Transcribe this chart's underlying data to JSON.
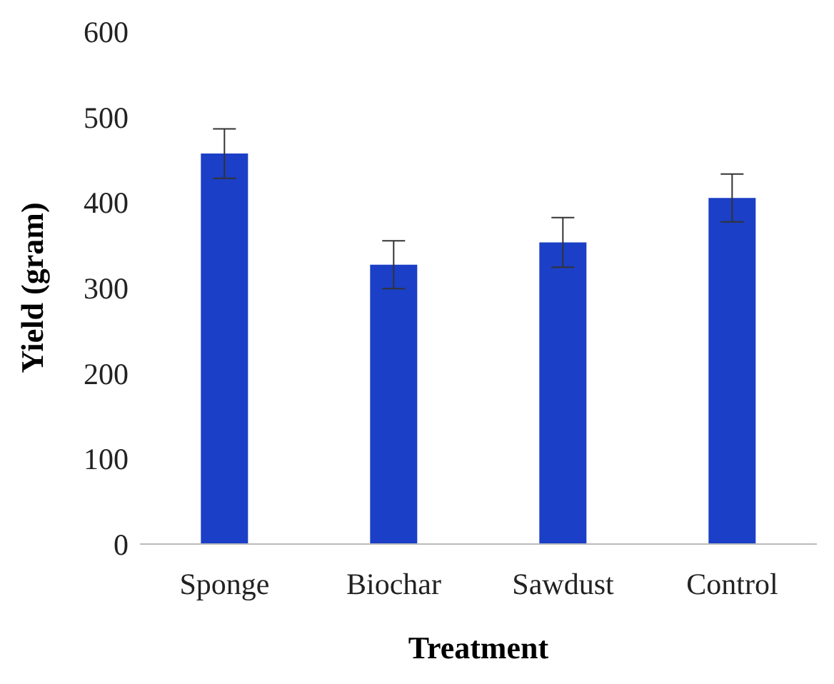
{
  "chart_data": {
    "type": "bar",
    "xlabel": "Treatment",
    "ylabel": "Yield (gram)",
    "categories": [
      "Sponge",
      "Biochar",
      "Sawdust",
      "Control"
    ],
    "values": [
      457,
      327,
      353,
      405
    ],
    "errors": [
      29,
      28,
      29,
      28
    ],
    "color": "#1b3fc6",
    "ylim": [
      0,
      600
    ],
    "yticks": [
      0,
      100,
      200,
      300,
      400,
      500,
      600
    ]
  }
}
